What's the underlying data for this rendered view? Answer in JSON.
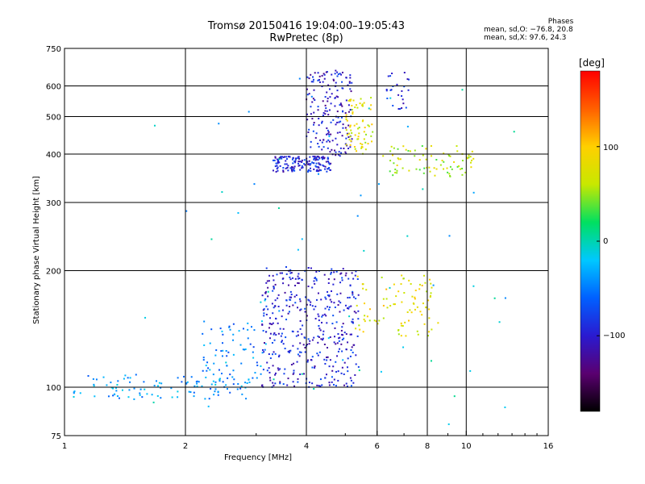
{
  "header": {
    "title": "Tromsø 20150416 19:04:00–19:05:43",
    "subtitle": "RwPretec (8p)",
    "stats_title": "Phases",
    "stats_o": "mean, sd,O: −76.8, 20.8",
    "stats_x": "mean, sd,X:  97.6, 24.3"
  },
  "colorbar": {
    "unit": "[deg]",
    "ticks": [
      "100",
      "0",
      "−100"
    ],
    "tick_values": [
      100,
      0,
      -100
    ],
    "range": [
      -180,
      180
    ],
    "colors": [
      "#000000",
      "#5a0070",
      "#2a1ad0",
      "#0060ff",
      "#00c8ff",
      "#00e060",
      "#c8e800",
      "#ffd000",
      "#ff6000",
      "#ff0000"
    ]
  },
  "chart_data": {
    "type": "scatter",
    "title": "Tromsø 20150416 19:04:00–19:05:43",
    "subtitle": "RwPretec (8p)",
    "xlabel": "Frequency [MHz]",
    "ylabel": "Stationary phase Virtual Height [km]",
    "xscale": "log",
    "yscale": "log",
    "xlim": [
      1,
      16
    ],
    "ylim": [
      75,
      750
    ],
    "xticks": [
      1,
      2,
      4,
      6,
      8,
      10,
      16
    ],
    "xtick_labels": [
      "1",
      "2",
      "4",
      "6",
      "8",
      "10",
      "16"
    ],
    "yticks": [
      75,
      100,
      200,
      300,
      400,
      500,
      600,
      750
    ],
    "ytick_labels": [
      "75",
      "100",
      "200",
      "300",
      "400",
      "500",
      "600",
      "750"
    ],
    "xgrid": [
      2,
      4,
      6,
      8,
      10
    ],
    "ygrid": [
      100,
      200,
      300,
      400,
      500,
      600
    ],
    "grid": true,
    "color_scale": "Phase [deg], rainbow −180 to 180",
    "clusters": [
      {
        "name": "",
        "f_range": [
          1.05,
          2.9
        ],
        "h_range": [
          93,
          108
        ],
        "phase_mean": -40,
        "n": 110
      },
      {
        "name": "",
        "f_range": [
          2.2,
          3.2
        ],
        "h_range": [
          105,
          150
        ],
        "phase_mean": -45,
        "n": 70
      },
      {
        "name": "",
        "f_range": [
          3.1,
          5.4
        ],
        "h_range": [
          100,
          205
        ],
        "phase_mean": -95,
        "n": 420
      },
      {
        "name": "",
        "f_range": [
          5.3,
          8.6
        ],
        "h_range": [
          135,
          195
        ],
        "phase_mean": 80,
        "n": 90
      },
      {
        "name": "",
        "f_range": [
          3.3,
          4.6
        ],
        "h_range": [
          360,
          395
        ],
        "phase_mean": -95,
        "n": 160
      },
      {
        "name": "",
        "f_range": [
          4.0,
          5.2
        ],
        "h_range": [
          395,
          660
        ],
        "phase_mean": -100,
        "n": 180
      },
      {
        "name": "",
        "f_range": [
          5.0,
          5.9
        ],
        "h_range": [
          400,
          560
        ],
        "phase_mean": 75,
        "n": 70
      },
      {
        "name": "",
        "f_range": [
          6.2,
          10.5
        ],
        "h_range": [
          350,
          420
        ],
        "phase_mean": 60,
        "n": 80
      },
      {
        "name": "",
        "f_range": [
          6.3,
          7.2
        ],
        "h_range": [
          520,
          650
        ],
        "phase_mean": -90,
        "n": 25
      },
      {
        "name": "",
        "f_range": [
          1.5,
          14
        ],
        "h_range": [
          78,
          650
        ],
        "phase_mean": -20,
        "n": 60
      }
    ]
  }
}
